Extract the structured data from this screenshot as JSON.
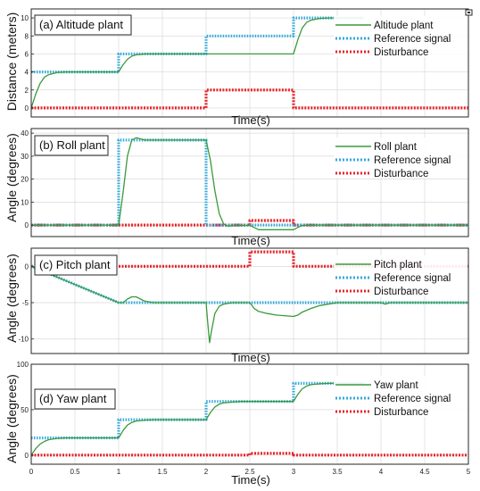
{
  "colors": {
    "plant": "#3a9a3a",
    "reference": "#33aadd",
    "disturbance": "#e8262a",
    "grid": "#d9d9d9",
    "frame": "#262626"
  },
  "chart_data": [
    {
      "type": "line",
      "title": "(a) Altitude plant",
      "xlabel": "Time(s)",
      "ylabel": "Distance (meters)",
      "xlim": [
        0,
        5
      ],
      "ylim": [
        -1,
        11
      ],
      "xticks": [],
      "yticks": [
        0,
        2,
        4,
        6,
        8,
        10
      ],
      "ytick_labels": [
        "0",
        "2",
        "4",
        "6",
        "8",
        "10"
      ],
      "grid": true,
      "legend_position": "top-right",
      "series": [
        {
          "name": "Altitude plant",
          "role": "plant",
          "x": [
            0,
            0.05,
            0.1,
            0.15,
            0.2,
            0.3,
            0.4,
            0.5,
            0.7,
            1.0,
            1.05,
            1.1,
            1.15,
            1.2,
            1.3,
            1.4,
            1.5,
            1.7,
            2.0,
            2.5,
            3.0,
            3.05,
            3.1,
            3.15,
            3.2,
            3.3,
            3.4,
            3.5,
            3.7,
            3.8
          ],
          "y": [
            0,
            1.5,
            2.7,
            3.4,
            3.7,
            3.95,
            4.0,
            4.0,
            4.0,
            4.0,
            4.8,
            5.4,
            5.75,
            5.9,
            6.0,
            6.0,
            6.0,
            6.0,
            6.0,
            6.0,
            6.0,
            7.6,
            8.9,
            9.5,
            9.75,
            9.95,
            10.0,
            10.0,
            10.0,
            10.0
          ]
        },
        {
          "name": "Reference signal",
          "role": "reference",
          "x": [
            0,
            1,
            1,
            2,
            2,
            3,
            3,
            3.8
          ],
          "y": [
            4,
            4,
            6,
            6,
            8,
            8,
            10,
            10
          ]
        },
        {
          "name": "Disturbance",
          "role": "disturbance",
          "x": [
            0,
            2,
            2,
            3,
            3,
            5
          ],
          "y": [
            0,
            0,
            2,
            2,
            0,
            0
          ]
        }
      ]
    },
    {
      "type": "line",
      "title": "(b) Roll plant",
      "xlabel": "Time(s)",
      "ylabel": "Angle (degrees)",
      "xlim": [
        0,
        5
      ],
      "ylim": [
        -5,
        42
      ],
      "xticks": [],
      "yticks": [
        0,
        10,
        20,
        30,
        40
      ],
      "ytick_labels": [
        "0",
        "10",
        "20",
        "30",
        "40"
      ],
      "grid": true,
      "legend_position": "top-right",
      "series": [
        {
          "name": "Roll plant",
          "role": "plant",
          "x": [
            0,
            1.0,
            1.05,
            1.1,
            1.15,
            1.2,
            1.25,
            1.3,
            1.4,
            1.6,
            2.0,
            2.05,
            2.1,
            2.15,
            2.2,
            2.25,
            2.3,
            2.5,
            2.6,
            2.8,
            3.0,
            3.05,
            3.1,
            3.2,
            5.0
          ],
          "y": [
            0,
            0,
            14,
            30,
            37,
            38,
            37.5,
            37,
            37,
            37,
            37,
            28,
            15,
            5,
            0.5,
            -0.5,
            -0.3,
            -0.1,
            -2,
            -2,
            -2,
            -1,
            -0.2,
            0,
            0
          ]
        },
        {
          "name": "Reference signal",
          "role": "reference",
          "x": [
            0,
            1,
            1,
            2,
            2,
            5
          ],
          "y": [
            0,
            0,
            37,
            37,
            0,
            0
          ]
        },
        {
          "name": "Disturbance",
          "role": "disturbance",
          "x": [
            0,
            2.5,
            2.5,
            3,
            3,
            5
          ],
          "y": [
            0,
            0,
            2,
            2,
            0,
            0
          ]
        }
      ]
    },
    {
      "type": "line",
      "title": "(c) Pitch plant",
      "xlabel": "Time(s)",
      "ylabel": "Angle (degrees)",
      "xlim": [
        0,
        5
      ],
      "ylim": [
        -12,
        2.5
      ],
      "xticks": [],
      "yticks": [
        -10,
        -5,
        0
      ],
      "ytick_labels": [
        "-10",
        "-5",
        "0"
      ],
      "grid": true,
      "legend_position": "top-right",
      "series": [
        {
          "name": "Pitch plant",
          "role": "plant",
          "x": [
            0,
            0.5,
            1.0,
            1.05,
            1.1,
            1.15,
            1.2,
            1.25,
            1.3,
            1.4,
            2.0,
            2.02,
            2.04,
            2.06,
            2.1,
            2.15,
            2.2,
            2.3,
            2.5,
            2.55,
            2.6,
            2.7,
            2.8,
            3.0,
            3.05,
            3.1,
            3.2,
            3.3,
            3.5,
            4.0,
            4.05,
            4.1,
            5.0
          ],
          "y": [
            0,
            -2.5,
            -5,
            -5,
            -4.5,
            -4.2,
            -4.2,
            -4.5,
            -4.8,
            -5,
            -5,
            -8,
            -10.5,
            -9,
            -6.5,
            -5.5,
            -5.2,
            -5,
            -5,
            -5.8,
            -6.2,
            -6.5,
            -6.7,
            -6.9,
            -6.7,
            -6.3,
            -5.8,
            -5.4,
            -5,
            -5,
            -5.2,
            -5,
            -5
          ]
        },
        {
          "name": "Reference signal",
          "role": "reference",
          "x": [
            0,
            1,
            5
          ],
          "y": [
            0,
            -5,
            -5
          ]
        },
        {
          "name": "Disturbance",
          "role": "disturbance",
          "x": [
            0,
            2.5,
            2.5,
            3,
            3,
            5
          ],
          "y": [
            0,
            0,
            2,
            2,
            0,
            0
          ]
        }
      ]
    },
    {
      "type": "line",
      "title": "(d) Yaw plant",
      "xlabel": "Time(s)",
      "ylabel": "Angle (degrees)",
      "xlim": [
        0,
        5
      ],
      "ylim": [
        -10,
        100
      ],
      "xticks": [
        0,
        0.5,
        1,
        1.5,
        2,
        2.5,
        3,
        3.5,
        4,
        4.5,
        5
      ],
      "xtick_labels": [
        "0",
        "0.5",
        "1",
        "1.5",
        "2",
        "2.5",
        "3",
        "3.5",
        "4",
        "4.5",
        "5"
      ],
      "yticks": [
        0,
        50,
        100
      ],
      "ytick_labels": [
        "0",
        "50",
        "100"
      ],
      "grid": true,
      "legend_position": "top-right",
      "series": [
        {
          "name": "Yaw plant",
          "role": "plant",
          "x": [
            0,
            0.05,
            0.1,
            0.15,
            0.2,
            0.3,
            0.4,
            0.5,
            1.0,
            1.05,
            1.1,
            1.15,
            1.2,
            1.3,
            1.4,
            1.5,
            2.0,
            2.05,
            2.1,
            2.15,
            2.2,
            2.3,
            2.4,
            2.5,
            3.0,
            3.05,
            3.1,
            3.15,
            3.2,
            3.3,
            3.4,
            3.5,
            3.8
          ],
          "y": [
            0,
            7,
            12,
            15,
            17,
            18.5,
            19,
            19,
            19,
            27,
            33,
            36,
            37.5,
            38.5,
            39,
            39,
            39,
            47,
            53,
            56,
            57.5,
            58.5,
            59,
            59,
            59,
            67,
            73,
            76,
            77.5,
            78.5,
            79,
            79,
            79
          ]
        },
        {
          "name": "Reference signal",
          "role": "reference",
          "x": [
            0,
            1,
            1,
            2,
            2,
            3,
            3,
            3.8
          ],
          "y": [
            19,
            19,
            39,
            39,
            59,
            59,
            79,
            79
          ]
        },
        {
          "name": "Disturbance",
          "role": "disturbance",
          "x": [
            0,
            2.5,
            2.5,
            3,
            3,
            5
          ],
          "y": [
            0,
            0,
            2,
            2,
            0,
            0
          ]
        }
      ]
    }
  ]
}
